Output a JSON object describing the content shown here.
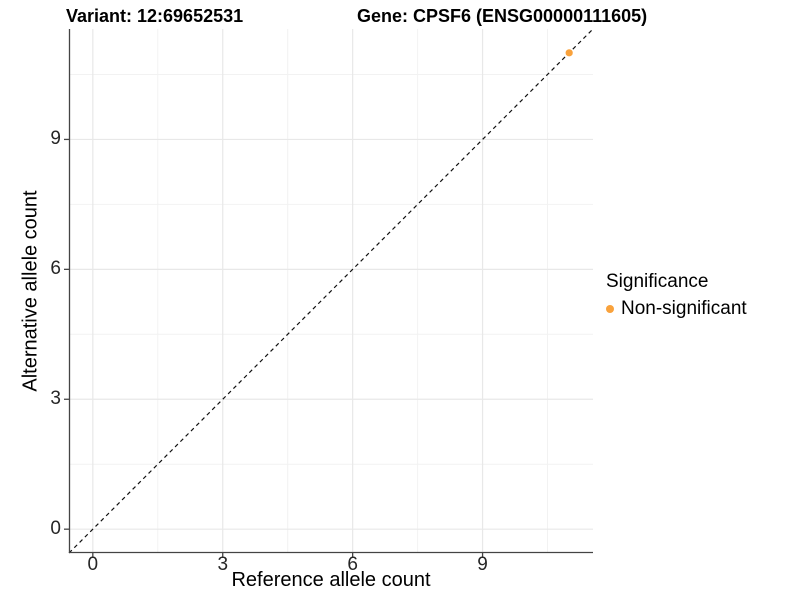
{
  "chart_data": {
    "type": "scatter",
    "titles": [
      "Variant: 12:69652531",
      "Gene: CPSF6 (ENSG00000111605)"
    ],
    "xlabel": "Reference allele count",
    "ylabel": "Alternative allele count",
    "xlim": [
      -0.55,
      11.55
    ],
    "ylim": [
      -0.55,
      11.55
    ],
    "x_ticks": [
      0,
      3,
      6,
      9
    ],
    "y_ticks": [
      0,
      3,
      6,
      9
    ],
    "x_minor_ticks": [
      1.5,
      4.5,
      7.5,
      10.5
    ],
    "y_minor_ticks": [
      1.5,
      4.5,
      7.5,
      10.5
    ],
    "grid": "major+minor",
    "axis_color": "#444444",
    "grid_major_color": "#E8E8E8",
    "grid_minor_color": "#F2F2F2",
    "reference_line": {
      "type": "identity",
      "label": "y = x",
      "style": "dashed",
      "color": "#111111"
    },
    "series": [
      {
        "name": "Non-significant",
        "color": "#F9A23C",
        "points": [
          [
            11,
            11
          ]
        ]
      }
    ],
    "legend": {
      "title": "Significance",
      "position": "right",
      "items": [
        {
          "label": "Non-significant",
          "color": "#F9A23C",
          "marker": "circle"
        }
      ]
    }
  }
}
